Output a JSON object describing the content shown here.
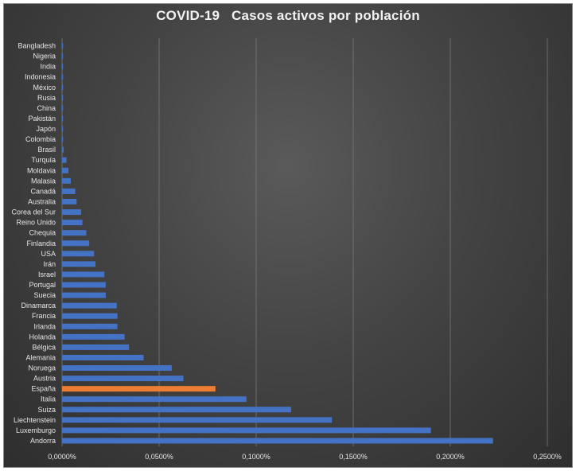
{
  "chart_data": {
    "type": "bar",
    "orientation": "horizontal",
    "title": "COVID-19   Casos activos por población",
    "xlabel": "",
    "ylabel": "",
    "xlim": [
      0,
      0.0025
    ],
    "x_ticks": [
      0,
      0.0005,
      0.001,
      0.0015,
      0.002,
      0.0025
    ],
    "x_tick_labels": [
      "0,0000%",
      "0,0500%",
      "0,1000%",
      "0,1500%",
      "0,2000%",
      "0,2500%"
    ],
    "grid": true,
    "legend": "none",
    "bar_color": "#4472c4",
    "highlight_color": "#ed7d31",
    "highlight_category": "España",
    "categories": [
      "Bangladesh",
      "Nigeria",
      "India",
      "Indonesia",
      "México",
      "Rusia",
      "China",
      "Pakistán",
      "Japón",
      "Colombia",
      "Brasil",
      "Turquía",
      "Moldavia",
      "Malasia",
      "Canadá",
      "Australia",
      "Corea del Sur",
      "Reino Unido",
      "Chequia",
      "Finlandia",
      "USA",
      "Irán",
      "Israel",
      "Portugal",
      "Suecia",
      "Dinamarca",
      "Francia",
      "Irlanda",
      "Holanda",
      "Bélgica",
      "Alemania",
      "Noruega",
      "Austria",
      "España",
      "Italia",
      "Suiza",
      "Liechtenstein",
      "Luxemburgo",
      "Andorra"
    ],
    "values": [
      1e-06,
      1e-06,
      1e-06,
      1e-06,
      2e-06,
      3e-06,
      3e-06,
      3e-06,
      5e-06,
      5e-06,
      8e-06,
      2.3e-05,
      3.3e-05,
      4.5e-05,
      6.8e-05,
      7.5e-05,
      9.8e-05,
      0.000105,
      0.000125,
      0.00014,
      0.000165,
      0.000172,
      0.000218,
      0.000225,
      0.000225,
      0.000282,
      0.000285,
      0.000285,
      0.000322,
      0.000345,
      0.00042,
      0.000565,
      0.000625,
      0.00079,
      0.00095,
      0.00118,
      0.00139,
      0.0019,
      0.00222
    ]
  }
}
